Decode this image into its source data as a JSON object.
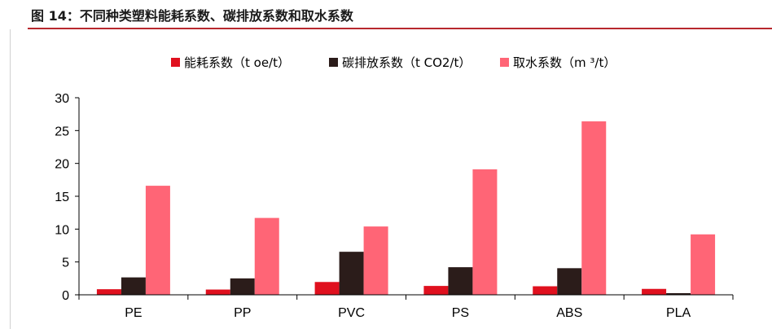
{
  "figure": {
    "title": "图 14：不同种类塑料能耗系数、碳排放系数和取水系数"
  },
  "colors": {
    "title_rule": "#b8282e",
    "energy": "#e0101e",
    "carbon": "#2b1c1a",
    "water": "#ff6576"
  },
  "chart_data": {
    "type": "bar",
    "categories": [
      "PE",
      "PP",
      "PVC",
      "PS",
      "ABS",
      "PLA"
    ],
    "series": [
      {
        "name": "能耗系数（t oe/t）",
        "color": "#e0101e",
        "values": [
          0.85,
          0.8,
          1.95,
          1.35,
          1.3,
          0.9
        ]
      },
      {
        "name": "碳排放系数（t CO2/t）",
        "color": "#2b1c1a",
        "values": [
          2.65,
          2.5,
          6.55,
          4.2,
          4.05,
          0.25
        ]
      },
      {
        "name": "取水系数（m ³/t）",
        "color": "#ff6576",
        "values": [
          16.6,
          11.7,
          10.4,
          19.1,
          26.4,
          9.2
        ]
      }
    ],
    "yticks": [
      "0",
      "5",
      "10",
      "15",
      "20",
      "25",
      "30"
    ],
    "ylim": [
      0,
      30
    ],
    "grid": false,
    "legend_position": "top"
  }
}
